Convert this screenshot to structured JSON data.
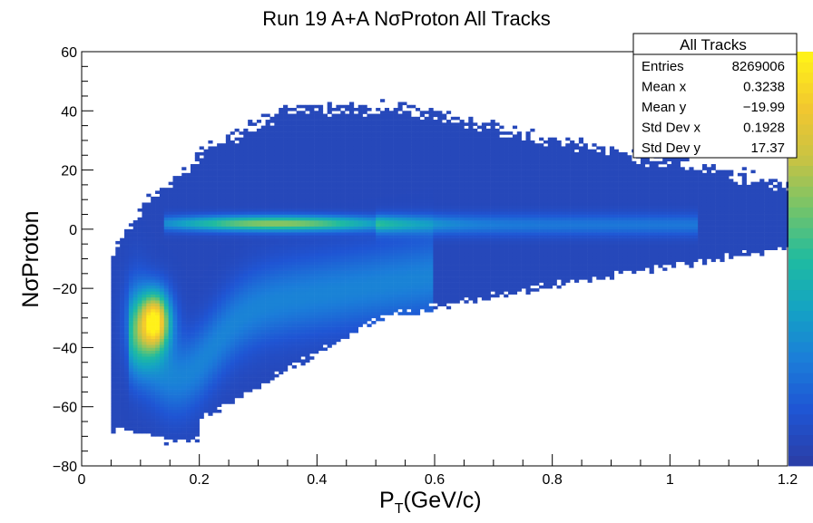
{
  "chart_data": {
    "type": "heatmap",
    "title": "Run 19 A+A NσProton All Tracks",
    "xlabel_main": "P",
    "xlabel_sub": "T",
    "xlabel_rest": "(GeV/c)",
    "ylabel": "NσProton",
    "xlim": [
      0,
      1.2
    ],
    "ylim": [
      -80,
      60
    ],
    "x_ticks": [
      {
        "value": 0,
        "label": "0"
      },
      {
        "value": 0.2,
        "label": "0.2"
      },
      {
        "value": 0.4,
        "label": "0.4"
      },
      {
        "value": 0.6,
        "label": "0.6"
      },
      {
        "value": 0.8,
        "label": "0.8"
      },
      {
        "value": 1.0,
        "label": "1"
      },
      {
        "value": 1.2,
        "label": "1.2"
      }
    ],
    "y_ticks": [
      {
        "value": -80,
        "label": "−80"
      },
      {
        "value": -60,
        "label": "−60"
      },
      {
        "value": -40,
        "label": "−40"
      },
      {
        "value": -20,
        "label": "−20"
      },
      {
        "value": 0,
        "label": "0"
      },
      {
        "value": 20,
        "label": "20"
      },
      {
        "value": 40,
        "label": "40"
      },
      {
        "value": 60,
        "label": "60"
      }
    ],
    "palette": [
      "#2a3fa9",
      "#1f55d4",
      "#1b7dd9",
      "#14a3c4",
      "#1fbba0",
      "#74c46a",
      "#c9c343",
      "#f2c72f",
      "#fff119"
    ],
    "stats": {
      "title": "All Tracks",
      "rows": [
        {
          "label": "Entries",
          "value": "8269006"
        },
        {
          "label": "Mean x",
          "value": "0.3238"
        },
        {
          "label": "Mean y",
          "value": "−19.99"
        },
        {
          "label": "Std Dev x",
          "value": "0.1928"
        },
        {
          "label": "Std Dev y",
          "value": "17.37"
        }
      ]
    }
  }
}
